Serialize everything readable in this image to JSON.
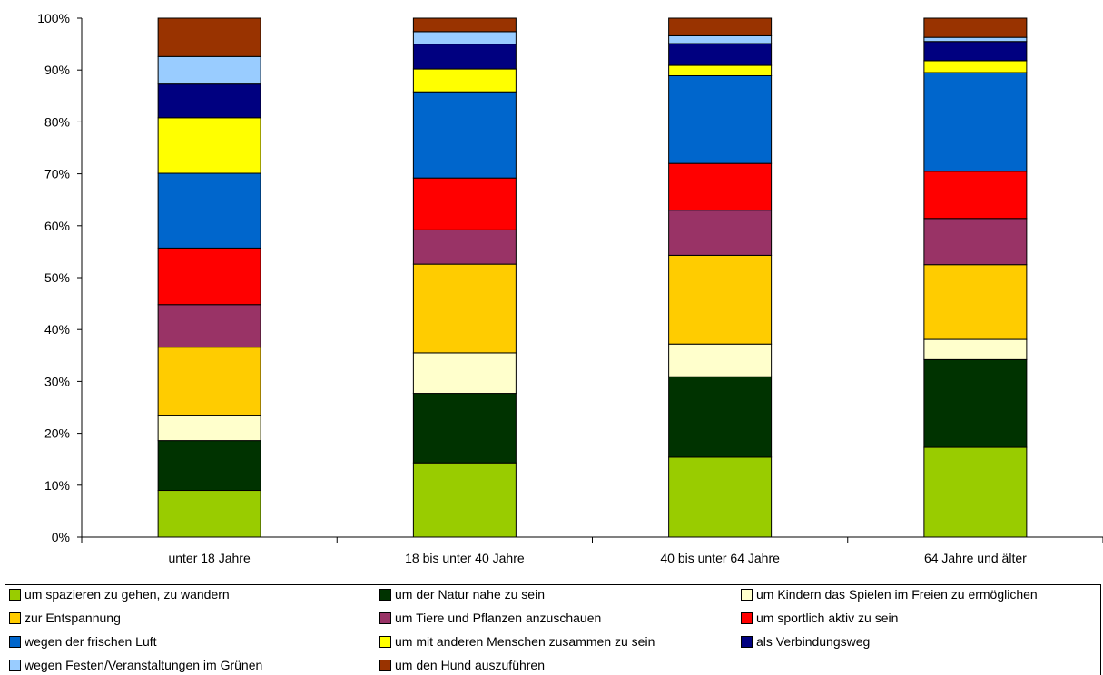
{
  "chart_data": {
    "type": "bar",
    "stacked": true,
    "percent_stacked": true,
    "categories": [
      "unter 18 Jahre",
      "18 bis unter 40 Jahre",
      "40 bis unter 64 Jahre",
      "64 Jahre und älter"
    ],
    "y_ticks": [
      "0%",
      "10%",
      "20%",
      "30%",
      "40%",
      "50%",
      "60%",
      "70%",
      "80%",
      "90%",
      "100%"
    ],
    "ylim": [
      0,
      100
    ],
    "legend_position": "bottom",
    "series": [
      {
        "name": "um spazieren zu gehen, zu wandern",
        "color": "#99cc00",
        "values": [
          9.0,
          14.3,
          15.4,
          17.3
        ]
      },
      {
        "name": "um der Natur nahe zu sein",
        "color": "#003300",
        "values": [
          9.6,
          13.4,
          15.5,
          16.9
        ]
      },
      {
        "name": "um Kindern das Spielen im Freien zu ermöglichen",
        "color": "#ffffcc",
        "values": [
          4.9,
          7.8,
          6.3,
          3.9
        ]
      },
      {
        "name": "zur Entspannung",
        "color": "#ffcc00",
        "values": [
          13.1,
          17.1,
          17.1,
          14.4
        ]
      },
      {
        "name": "um Tiere und Pflanzen anzuschauen",
        "color": "#993366",
        "values": [
          8.2,
          6.6,
          8.7,
          8.9
        ]
      },
      {
        "name": "um sportlich aktiv zu sein",
        "color": "#ff0000",
        "values": [
          10.9,
          10.0,
          9.0,
          9.1
        ]
      },
      {
        "name": "wegen der frischen Luft",
        "color": "#0066cc",
        "values": [
          14.4,
          16.6,
          16.9,
          19.0
        ]
      },
      {
        "name": "um mit anderen Menschen zusammen zu sein",
        "color": "#ffff00",
        "values": [
          10.7,
          4.4,
          2.0,
          2.3
        ]
      },
      {
        "name": "als Verbindungsweg",
        "color": "#000080",
        "values": [
          6.5,
          4.8,
          4.2,
          3.7
        ]
      },
      {
        "name": "wegen Festen/Veranstaltungen im Grünen",
        "color": "#99ccff",
        "values": [
          5.3,
          2.4,
          1.5,
          0.8
        ]
      },
      {
        "name": "um den Hund auszuführen",
        "color": "#993300",
        "values": [
          7.4,
          2.6,
          3.4,
          3.7
        ]
      }
    ]
  }
}
